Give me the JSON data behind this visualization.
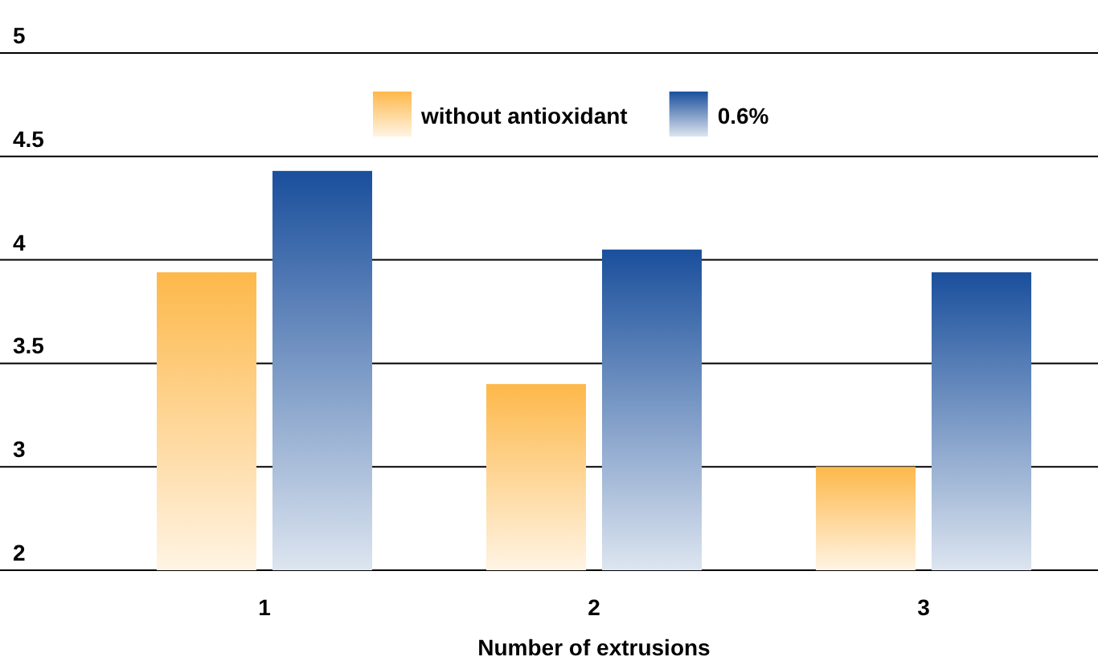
{
  "chart_data": {
    "type": "bar",
    "xlabel": "Number of extrusions",
    "categories": [
      "1",
      "2",
      "3"
    ],
    "series": [
      {
        "name": "without antioxidant",
        "color": "#fdb84a",
        "values": [
          3.94,
          3.4,
          3.0
        ]
      },
      {
        "name": "0.6%",
        "color": "#1a4f9c",
        "values": [
          4.43,
          4.05,
          3.94
        ]
      }
    ],
    "ylim": [
      2.5,
      5
    ],
    "yticks": [
      {
        "value": 2.5,
        "label": "2"
      },
      3,
      3.5,
      4,
      4.5,
      5
    ],
    "grid": "y",
    "legend": "top right"
  }
}
